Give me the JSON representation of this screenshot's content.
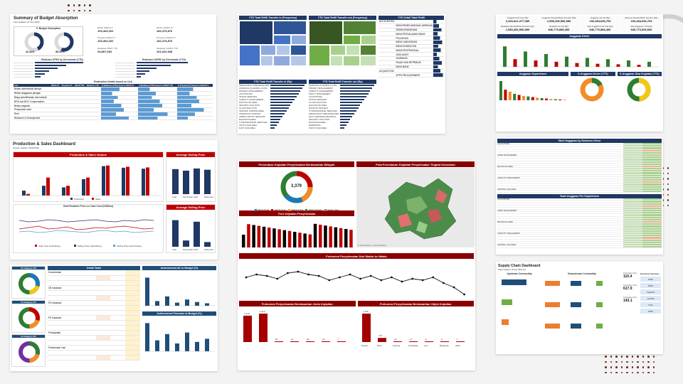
{
  "budget": {
    "title": "Summary of Budget Absorption",
    "last_updated": "Last Updated: 11 Nov 2022",
    "absorption_label": "% Budget Absorption",
    "opex_pct": "42.43%",
    "opex_label": "OPEX",
    "capex_pct": "55.36%",
    "capex_label": "CAPEX",
    "kpis": [
      {
        "label": "RKAP OPEX FY",
        "value": "103,403,202"
      },
      {
        "label": "RKAP CAPEX FY",
        "value": "182,479,876"
      },
      {
        "label": "Proyeksi OPEX FY",
        "value": "103,403,202"
      },
      {
        "label": "Proyeksi CAPEX FY",
        "value": "182,479,876"
      },
      {
        "label": "Realisasi OPEX YTD",
        "value": "43,867,654"
      },
      {
        "label": "Realisasi CAPEX YTD",
        "value": "101,022,948"
      }
    ],
    "opex_by_dir": "Realisasi OPEX by Directorate (YTD)",
    "capex_by_dir": "Realisasi CAPEX by Directorate (YTD)",
    "detail_title": "Realisation Details based on CoA",
    "columns": [
      "CoA",
      "RKAP FY",
      "Proyeksi FY",
      "RKAP YTD",
      "Realisasi YTD",
      "% Realisasi (YTD) based on RKAP FY",
      "% Realisasi (YTD) based on RKAP YTD",
      "% Proyeksi (FY) based on RKAP FY"
    ],
    "rows": [
      "Beban administrasi lainnya",
      "Beban langganan jaringan",
      "Biaya pemeliharaan dan kontrak",
      "BOD and BOC Compensation",
      "Beban pegawai",
      "Penyusutan aset",
      "Rent",
      "Research & Development"
    ]
  },
  "refill": {
    "freq_title": "YTD Total Refill Transfer in (Frequency)",
    "out_freq_title": "YTD Total Refill Transfer out (Frequency)",
    "detail_title": "YTD Detail Tabel Refill",
    "in_rp_title": "YTD Total Refill Transfer in (Rp)",
    "out_rp_title": "YTD Total Refill Transfer out (Rp)",
    "in_rows": [
      "INFRASTRUCTURE DEVELOPM..",
      "FINANCIAL PLANNING & CON..",
      "PROJECT MANAGEMENT",
      "ACCOUNTING",
      "OFFICE SERVICES",
      "CAPACITY MANAGEMENT",
      "DGM SOUTH AREA",
      "SECURITY SOLUTION",
      "CLOUD SOLUTION",
      "CENTRAL SUMATRA AREA",
      "OPERATION SUPPORT",
      "URBAN CAPITAL SERVICES",
      "BALIKNUSA AREA",
      "IT PROFESSIONAL SERVICES",
      "SOUTH JAVA AREA",
      "EAST JAVA AREA"
    ],
    "out_rows": [
      "FINANCIAL PLANNING & CON..",
      "PROJECT MANAGEMENT",
      "CAPACITY MANAGEMENT",
      "POLICY MANAGEMENT",
      "ACCOUNTING",
      "OFFICE SERVICES",
      "CLOUD SOLUTION",
      "DGM SOUTH AREA",
      "WHITE BY PROJECT",
      "IT PROFESSIONAL SERVICES",
      "INFRASTRUCTURE DEVELOPM..",
      "EAST INDONESIA REGIONAL",
      "SECURITY SOLUTION",
      "BALIKNUSA AREA",
      "MARKETING",
      "SOUTH JAVA AREA"
    ],
    "detail_cols": [
      "Department",
      "Month",
      "No Description",
      "Realisasi"
    ],
    "detail_rows": [
      "ACCOUNTING",
      "BIAYA PEMELIHARAAN JARINGAN",
      "SEWA KENDARAAN",
      "BIAYA PERJALANAN DINAS",
      "PELATIHAN",
      "BIAYA LANGGANAN",
      "BIAYA KONSULTAN",
      "BIAYA PROFESIONAL",
      "JASA AUDIT",
      "ASURANSI",
      "PAJAK DAN RETRIBUSI",
      "BIAYA BANK",
      "ACQUISITION",
      "APPS PROCUREMENT"
    ]
  },
  "anggaran": {
    "kpis": [
      {
        "label": "Anggaran Full Year (Rp)",
        "value": "2,326,621,377,089"
      },
      {
        "label": "Anggaran Sampai Bulan Kemarin (Rp)",
        "value": "1,958,108,506,589"
      },
      {
        "label": "Anggaran s/d Juli (Rp)",
        "value": "152,484,636,763"
      },
      {
        "label": "Reserve Sampai Bulan Kemarin (Rp)",
        "value": "152,484,636,763"
      },
      {
        "label": "Realisasi Sampai Bulan Kemarin (Rp)",
        "value": "1,580,466,506,889"
      },
      {
        "label": "Realisasi s/d Juli (Rp)",
        "value": "846,770,886,466"
      },
      {
        "label": "Sisa Anggaran Full Year (Rp)",
        "value": "846,770,886,466"
      },
      {
        "label": "Sisa Anggaran YTD (Rp)",
        "value": "546,773,306,666"
      }
    ],
    "driver_title": "Anggaran Driver",
    "dept_title": "Anggaran Departemen",
    "driver_pct_title": "% Anggaran Driver (YTD)",
    "realisasi_pct_title": "% Anggaran Sisa Kegiatan (YTD)"
  },
  "production": {
    "title": "Production & Sales Dashboard",
    "subtitle": "System Update: 18/11/2022",
    "volume_title": "Production & Sales Volume",
    "asp_title": "Average Selling Price",
    "gold_title": "Gold Realised Price vs Cash Cost (USD/toz)",
    "legend_line": [
      "Cash Cost Gold Mining",
      "Selling Price Gold Mining",
      "Selling Price Gold Trading"
    ],
    "legend_bar": [
      "Production",
      "Sales"
    ],
    "groups": [
      "Gold Mine",
      "YTD Gold Trade",
      "YTD Current Year"
    ],
    "asp_cats": [
      "Coal",
      "Ferronickel",
      "Gold",
      "Nickel Ore"
    ],
    "months": [
      "September",
      "October",
      "November",
      "2021",
      "2022"
    ]
  },
  "category": {
    "cat_titles": [
      "% Category CB",
      "% Category PU",
      "% Category PK"
    ],
    "detail_title": "Detail Tabel",
    "achievement_title": "Achievement All vs Budget (%)",
    "forecast_title": "Achievement Forecast vs Budget (%)",
    "row_labels": [
      "Kementerian",
      "CB Kawasan",
      "PU Kawasan",
      "PK Kawasan",
      "Pendapatan",
      "Penerimaan Lain",
      "Realisasi",
      "Lainnya"
    ]
  },
  "kejahatan": {
    "ratio_title": "Persentase Kejadian Penyelesaian Berdasarkan Wilayah",
    "total": "3,379",
    "map_title": "Peta Persebaran Kejadian Penyelesaian Tingkat Kelurahan",
    "trend_title": "Tren Kejadian Penyelesaian",
    "freq_title": "Frekuensi Penyelesaian Dari Waktu ke Waktu",
    "by_type_title": "Frekuensi Penyelesaian Berdasarkan Jenis Kejadian",
    "by_obj_title": "Frekuensi Penyelesaian Berdasarkan Objek Kejadian",
    "legend": [
      "Jakarta Barat",
      "Jakarta Timur",
      "Jakarta Pusat",
      "Jakarta Selatan",
      "Jakarta Utara"
    ],
    "type_values": [
      "1,218",
      "1,313",
      "19",
      "12",
      "20",
      "12",
      "7"
    ],
    "obj_values": [
      "1,218",
      "176",
      "13",
      "17",
      "9",
      "4",
      "1"
    ],
    "obj_labels": [
      "Rumah",
      "Ruko",
      "Gedung",
      "Kendaraan",
      "Lain",
      "Bangunan",
      "Jalan"
    ],
    "map_attr": "© 2023 Mapbox © OpenStreetMap"
  },
  "tabel_anggaran": {
    "title": "Tabel Anggaran by Business Driver",
    "title2": "Tabel Anggaran Per Departemen",
    "row_labels": [
      "ACCOUNTING",
      "ASSET MANAGEMENT",
      "BALIKNUSA AREA",
      "CAPACITY MANAGEMENT",
      "CENTRAL JAVA AREA",
      "CENTRAL SUMATERA AREA",
      "CLOUD SOLUTION"
    ]
  },
  "supply": {
    "title": "Supply Chain Dashboard",
    "subtitle": "Data Updated: 25 Jan 2024 Q4",
    "col1": "Upstream Commodity",
    "col2": "Downstream Commodity",
    "col3": "Executive Summary",
    "metrics": [
      {
        "label": "Total Sales (Ton)",
        "value": "110.4"
      },
      {
        "label": "Total Sales (Ton)",
        "value": "617.9"
      },
      {
        "label": "Total Sales (Ton)",
        "value": "143.1"
      }
    ],
    "summary_items": [
      "PTBA",
      "PTBA",
      "INALUM",
      "ANTAM",
      "PTFI",
      "PTBA"
    ]
  }
}
